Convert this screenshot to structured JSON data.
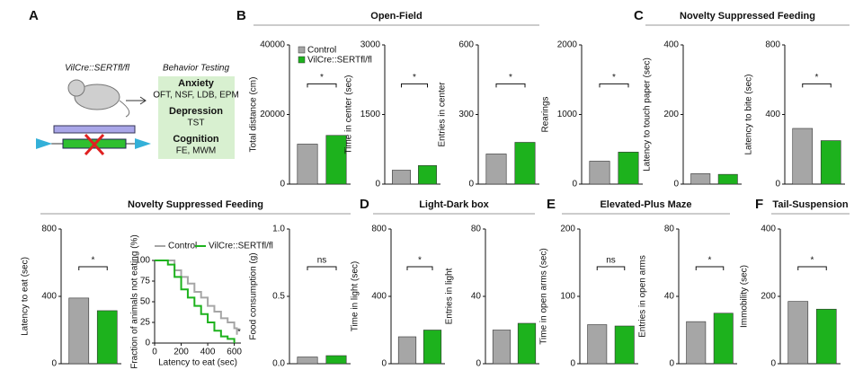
{
  "diagram": {
    "letter": "A",
    "genotype": "VilCre::SERTfl/fl",
    "box_title": "Behavior Testing",
    "groups": [
      {
        "title": "Anxiety",
        "tests": "OFT, NSF, LDB, EPM"
      },
      {
        "title": "Depression",
        "tests": "TST"
      },
      {
        "title": "Cognition",
        "tests": "FE, MWM"
      }
    ]
  },
  "panels": [
    {
      "letter": "B",
      "title": "Open-Field"
    },
    {
      "letter": "C",
      "title": "Novelty Suppressed Feeding"
    },
    {
      "title": "Novelty Suppressed Feeding"
    },
    {
      "letter": "D",
      "title": "Light-Dark box"
    },
    {
      "letter": "E",
      "title": "Elevated-Plus Maze"
    },
    {
      "letter": "F",
      "title": "Tail-Suspension"
    }
  ],
  "chart_data": [
    {
      "type": "bar",
      "ylabel": "Total distance (cm)",
      "values": [
        11500,
        14000
      ],
      "colors": [
        "#a6a6a6",
        "#1db21d"
      ],
      "ylim": [
        0,
        40000
      ],
      "yticks": [
        0,
        20000,
        40000
      ],
      "annotation": "*",
      "legend": [
        "Control",
        "VilCre::SERTfl/fl"
      ]
    },
    {
      "type": "bar",
      "ylabel": "Time in center (sec)",
      "values": [
        300,
        400
      ],
      "colors": [
        "#a6a6a6",
        "#1db21d"
      ],
      "ylim": [
        0,
        3000
      ],
      "yticks": [
        0,
        1500,
        3000
      ],
      "annotation": "*"
    },
    {
      "type": "bar",
      "ylabel": "Entries in center",
      "values": [
        130,
        180
      ],
      "colors": [
        "#a6a6a6",
        "#1db21d"
      ],
      "ylim": [
        0,
        600
      ],
      "yticks": [
        0,
        300,
        600
      ],
      "annotation": "*"
    },
    {
      "type": "bar",
      "ylabel": "Rearings",
      "values": [
        330,
        460
      ],
      "colors": [
        "#a6a6a6",
        "#1db21d"
      ],
      "ylim": [
        0,
        2000
      ],
      "yticks": [
        0,
        1000,
        2000
      ],
      "annotation": "*"
    },
    {
      "type": "bar",
      "ylabel": "Latency to touch paper (sec)",
      "values": [
        30,
        28
      ],
      "colors": [
        "#a6a6a6",
        "#1db21d"
      ],
      "ylim": [
        0,
        400
      ],
      "yticks": [
        0,
        200,
        400
      ]
    },
    {
      "type": "bar",
      "ylabel": "Latency to bite (sec)",
      "values": [
        320,
        250
      ],
      "colors": [
        "#a6a6a6",
        "#1db21d"
      ],
      "ylim": [
        0,
        800
      ],
      "yticks": [
        0,
        400,
        800
      ],
      "annotation": "*"
    },
    {
      "type": "bar",
      "ylabel": "Latency to eat (sec)",
      "values": [
        390,
        315
      ],
      "colors": [
        "#a6a6a6",
        "#1db21d"
      ],
      "ylim": [
        0,
        800
      ],
      "yticks": [
        0,
        400,
        800
      ],
      "annotation": "*"
    },
    {
      "type": "line",
      "step": true,
      "xlabel": "Latency to eat (sec)",
      "ylabel": "Fraction of animals not eating (%)",
      "xlim": [
        0,
        650
      ],
      "xticks": [
        0,
        200,
        400,
        600
      ],
      "ylim": [
        0,
        100
      ],
      "yticks": [
        0,
        25,
        50,
        75,
        100
      ],
      "annotation": "*",
      "series": [
        {
          "name": "Control",
          "color": "#a6a6a6",
          "x": [
            0,
            100,
            150,
            200,
            250,
            300,
            350,
            400,
            450,
            500,
            550,
            600,
            620
          ],
          "values": [
            100,
            100,
            88,
            80,
            72,
            62,
            55,
            45,
            38,
            30,
            25,
            18,
            10
          ]
        },
        {
          "name": "VilCre::SERTfl/fl",
          "color": "#1db21d",
          "x": [
            0,
            100,
            150,
            200,
            250,
            300,
            350,
            400,
            450,
            500,
            550,
            600
          ],
          "values": [
            100,
            95,
            80,
            65,
            55,
            45,
            35,
            25,
            15,
            8,
            5,
            0
          ]
        }
      ]
    },
    {
      "type": "bar",
      "ylabel": "Food consumption (g)",
      "values": [
        0.05,
        0.06
      ],
      "colors": [
        "#a6a6a6",
        "#1db21d"
      ],
      "ylim": [
        0,
        1
      ],
      "yticks": [
        {
          "value": 0,
          "label": "0.0"
        },
        {
          "value": 0.5,
          "label": "0.5"
        },
        {
          "value": 1,
          "label": "1.0"
        }
      ],
      "annotation": "ns"
    },
    {
      "type": "bar",
      "ylabel": "Time in light (sec)",
      "values": [
        160,
        200
      ],
      "colors": [
        "#a6a6a6",
        "#1db21d"
      ],
      "ylim": [
        0,
        800
      ],
      "yticks": [
        0,
        400,
        800
      ],
      "annotation": "*"
    },
    {
      "type": "bar",
      "ylabel": "Entries in light",
      "values": [
        20,
        24
      ],
      "colors": [
        "#a6a6a6",
        "#1db21d"
      ],
      "ylim": [
        0,
        80
      ],
      "yticks": [
        0,
        40,
        80
      ]
    },
    {
      "type": "bar",
      "ylabel": "Time in open arms (sec)",
      "values": [
        58,
        56
      ],
      "colors": [
        "#a6a6a6",
        "#1db21d"
      ],
      "ylim": [
        0,
        200
      ],
      "yticks": [
        0,
        100,
        200
      ],
      "annotation": "ns"
    },
    {
      "type": "bar",
      "ylabel": "Entries in open arms",
      "values": [
        25,
        30
      ],
      "colors": [
        "#a6a6a6",
        "#1db21d"
      ],
      "ylim": [
        0,
        80
      ],
      "yticks": [
        0,
        40,
        80
      ],
      "annotation": "*"
    },
    {
      "type": "bar",
      "ylabel": "Immobility (sec)",
      "values": [
        185,
        162
      ],
      "colors": [
        "#a6a6a6",
        "#1db21d"
      ],
      "ylim": [
        0,
        400
      ],
      "yticks": [
        0,
        200,
        400
      ],
      "annotation": "*"
    }
  ]
}
